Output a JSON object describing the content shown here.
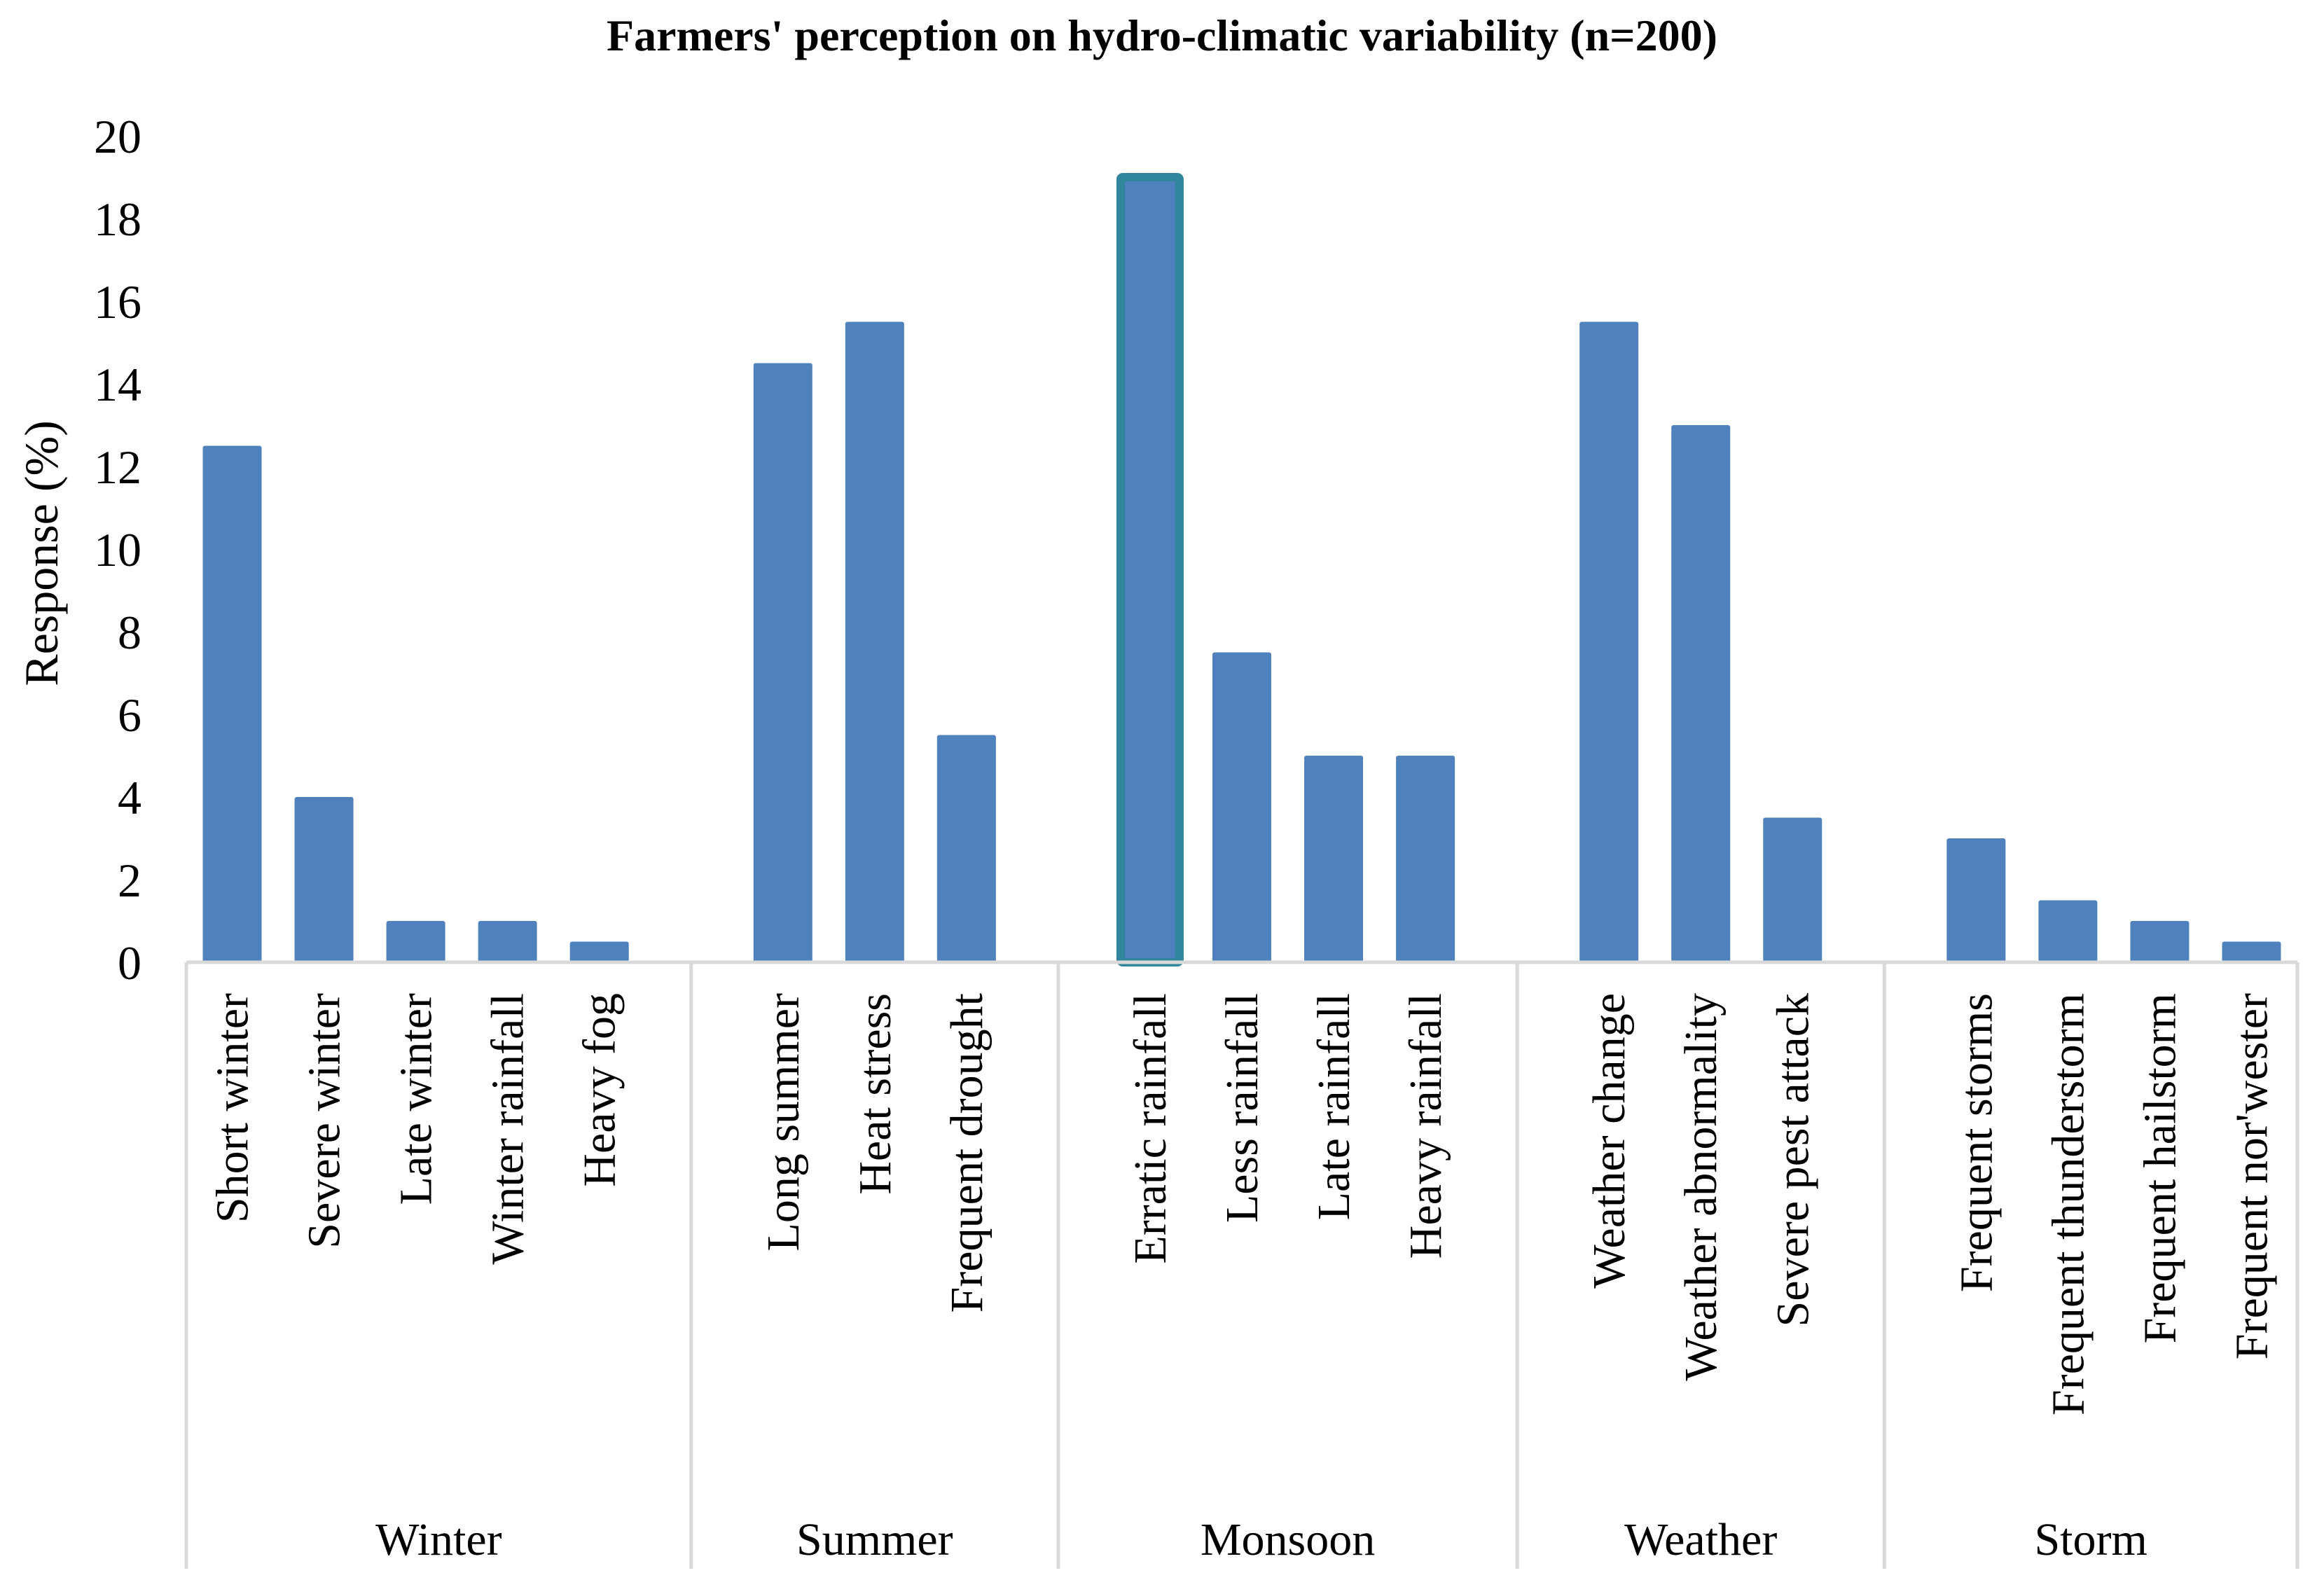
{
  "chart_data": {
    "type": "bar",
    "title": "Farmers' perception on hydro-climatic variability (n=200)",
    "xlabel": "",
    "ylabel": "Response (%)",
    "ylim": [
      0,
      20
    ],
    "yticks": [
      0,
      2,
      4,
      6,
      8,
      10,
      12,
      14,
      16,
      18,
      20
    ],
    "grid": false,
    "legend": "none",
    "colors": {
      "bar": "#4F81BD",
      "highlight_border": "#31859C",
      "axis": "#D9D9D9"
    },
    "groups": [
      {
        "name": "Winter",
        "categories": [
          "Short winter",
          "Severe winter",
          "Late winter",
          "Winter rainfall",
          "Heavy fog"
        ],
        "values": [
          12.5,
          4,
          1,
          1,
          0.5
        ]
      },
      {
        "name": "Summer",
        "categories": [
          "Long summer",
          "Heat stress",
          "Frequent drought"
        ],
        "values": [
          14.5,
          15.5,
          5.5
        ]
      },
      {
        "name": "Monsoon",
        "categories": [
          "Erratic rainfall",
          "Less rainfall",
          "Late rainfall",
          "Heavy rainfall"
        ],
        "values": [
          19,
          7.5,
          5,
          5
        ]
      },
      {
        "name": "Weather",
        "categories": [
          "Weather change",
          "Weather abnormality",
          "Severe pest attack"
        ],
        "values": [
          15.5,
          13,
          3.5
        ]
      },
      {
        "name": "Storm",
        "categories": [
          "Frequent storms",
          "Frequent thunderstorm",
          "Frequent hailstorm",
          "Frequent nor'wester"
        ],
        "values": [
          3,
          1.5,
          1,
          0.5
        ]
      }
    ],
    "highlighted": "Erratic rainfall"
  }
}
